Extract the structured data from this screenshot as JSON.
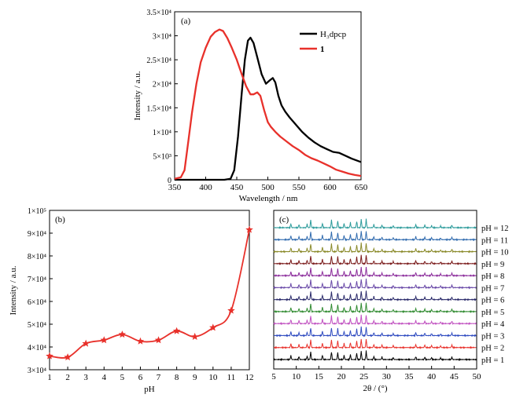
{
  "chart_data": [
    {
      "panel_label": "(a)",
      "type": "line",
      "xlabel": "Wavelength / nm",
      "ylabel": "Intensity / a.u.",
      "xlim": [
        350,
        650
      ],
      "ylim": [
        0,
        35000
      ],
      "x_ticks": [
        350,
        400,
        450,
        500,
        550,
        600,
        650
      ],
      "y_ticks": [
        {
          "value": 0,
          "label": "0"
        },
        {
          "value": 5000,
          "label": "5×10³"
        },
        {
          "value": 10000,
          "label": "1×10⁴"
        },
        {
          "value": 15000,
          "label": "1.5×10⁴"
        },
        {
          "value": 20000,
          "label": "2×10⁴"
        },
        {
          "value": 25000,
          "label": "2.5×10⁴"
        },
        {
          "value": 30000,
          "label": "3×10⁴"
        },
        {
          "value": 35000,
          "label": "3.5×10⁴"
        }
      ],
      "legend": {
        "placement": "top-right"
      },
      "series": [
        {
          "name": "H₃dpcp",
          "color": "#000000",
          "points": [
            [
              350,
              0
            ],
            [
              400,
              0
            ],
            [
              430,
              0
            ],
            [
              440,
              200
            ],
            [
              446,
              2000
            ],
            [
              452,
              9000
            ],
            [
              458,
              18000
            ],
            [
              463,
              25000
            ],
            [
              468,
              29000
            ],
            [
              472,
              29600
            ],
            [
              477,
              28500
            ],
            [
              483,
              25500
            ],
            [
              490,
              22000
            ],
            [
              497,
              20000
            ],
            [
              503,
              20700
            ],
            [
              508,
              21200
            ],
            [
              512,
              20300
            ],
            [
              517,
              17500
            ],
            [
              522,
              15500
            ],
            [
              528,
              14200
            ],
            [
              535,
              13000
            ],
            [
              545,
              11500
            ],
            [
              555,
              10000
            ],
            [
              565,
              8800
            ],
            [
              575,
              7800
            ],
            [
              585,
              7000
            ],
            [
              595,
              6400
            ],
            [
              605,
              5800
            ],
            [
              615,
              5600
            ],
            [
              625,
              5000
            ],
            [
              635,
              4400
            ],
            [
              650,
              3700
            ]
          ]
        },
        {
          "name": "1",
          "color": "#e8312b",
          "points": [
            [
              350,
              200
            ],
            [
              360,
              500
            ],
            [
              366,
              2000
            ],
            [
              372,
              8000
            ],
            [
              378,
              14000
            ],
            [
              385,
              20000
            ],
            [
              392,
              24500
            ],
            [
              400,
              27500
            ],
            [
              408,
              29800
            ],
            [
              415,
              30800
            ],
            [
              422,
              31300
            ],
            [
              428,
              31000
            ],
            [
              435,
              29500
            ],
            [
              442,
              27500
            ],
            [
              450,
              25000
            ],
            [
              458,
              22000
            ],
            [
              465,
              19500
            ],
            [
              472,
              17800
            ],
            [
              477,
              17800
            ],
            [
              483,
              18200
            ],
            [
              488,
              17500
            ],
            [
              494,
              14500
            ],
            [
              500,
              12000
            ],
            [
              505,
              11000
            ],
            [
              512,
              10000
            ],
            [
              520,
              9000
            ],
            [
              530,
              8000
            ],
            [
              540,
              7000
            ],
            [
              550,
              6200
            ],
            [
              560,
              5200
            ],
            [
              570,
              4500
            ],
            [
              580,
              4000
            ],
            [
              590,
              3400
            ],
            [
              600,
              2800
            ],
            [
              610,
              2100
            ],
            [
              620,
              1700
            ],
            [
              630,
              1300
            ],
            [
              640,
              1000
            ],
            [
              650,
              800
            ]
          ]
        }
      ]
    },
    {
      "panel_label": "(b)",
      "type": "line",
      "xlabel": "pH",
      "ylabel": "Intensity / a.u.",
      "xlim": [
        1,
        12
      ],
      "ylim": [
        30000,
        100000
      ],
      "x_ticks": [
        1,
        2,
        3,
        4,
        5,
        6,
        7,
        8,
        9,
        10,
        11,
        12
      ],
      "y_ticks": [
        {
          "value": 30000,
          "label": "3×10⁴"
        },
        {
          "value": 40000,
          "label": "4×10⁴"
        },
        {
          "value": 50000,
          "label": "5×10⁴"
        },
        {
          "value": 60000,
          "label": "6×10⁴"
        },
        {
          "value": 70000,
          "label": "7×10⁴"
        },
        {
          "value": 80000,
          "label": "8×10⁴"
        },
        {
          "value": 90000,
          "label": "9×10⁴"
        },
        {
          "value": 100000,
          "label": "1×10⁵"
        }
      ],
      "series": [
        {
          "color": "#e8312b",
          "marker": "star",
          "x": [
            1,
            2,
            3,
            4,
            5,
            6,
            7,
            8,
            9,
            10,
            11,
            12
          ],
          "values": [
            36000,
            35500,
            41500,
            43000,
            45500,
            42500,
            43000,
            47000,
            44500,
            48500,
            56000,
            91500
          ]
        }
      ]
    },
    {
      "panel_label": "(c)",
      "type": "line",
      "xlabel": "2θ / (°)",
      "xlim": [
        5,
        50
      ],
      "x_ticks": [
        5,
        10,
        15,
        20,
        25,
        30,
        35,
        40,
        45,
        50
      ],
      "series": [
        {
          "name": "pH = 1",
          "color": "#000000"
        },
        {
          "name": "pH = 2",
          "color": "#e8312b"
        },
        {
          "name": "pH = 3",
          "color": "#2f4bc0"
        },
        {
          "name": "pH = 4",
          "color": "#c050c0"
        },
        {
          "name": "pH = 5",
          "color": "#2f8a2f"
        },
        {
          "name": "pH = 6",
          "color": "#2a2a6a"
        },
        {
          "name": "pH = 7",
          "color": "#6a4aa8"
        },
        {
          "name": "pH = 8",
          "color": "#8a2a9a"
        },
        {
          "name": "pH = 9",
          "color": "#7a1a1a"
        },
        {
          "name": "pH = 10",
          "color": "#8a8a2a"
        },
        {
          "name": "pH = 11",
          "color": "#2f6aae"
        },
        {
          "name": "pH = 12",
          "color": "#2a9a9a"
        }
      ],
      "peaks": [
        {
          "x": 8.8,
          "h": 0.45
        },
        {
          "x": 10.6,
          "h": 0.35
        },
        {
          "x": 12.4,
          "h": 0.4
        },
        {
          "x": 13.2,
          "h": 0.9
        },
        {
          "x": 15.8,
          "h": 0.5
        },
        {
          "x": 17.8,
          "h": 0.9
        },
        {
          "x": 19.2,
          "h": 0.8
        },
        {
          "x": 20.6,
          "h": 0.5
        },
        {
          "x": 22.0,
          "h": 0.6
        },
        {
          "x": 23.4,
          "h": 0.75
        },
        {
          "x": 24.4,
          "h": 1.0
        },
        {
          "x": 25.5,
          "h": 1.0
        },
        {
          "x": 27.2,
          "h": 0.35
        },
        {
          "x": 29.0,
          "h": 0.3
        },
        {
          "x": 31.5,
          "h": 0.25
        },
        {
          "x": 36.5,
          "h": 0.35
        },
        {
          "x": 38.5,
          "h": 0.3
        },
        {
          "x": 40.0,
          "h": 0.25
        },
        {
          "x": 42.0,
          "h": 0.2
        },
        {
          "x": 44.5,
          "h": 0.3
        }
      ]
    }
  ]
}
